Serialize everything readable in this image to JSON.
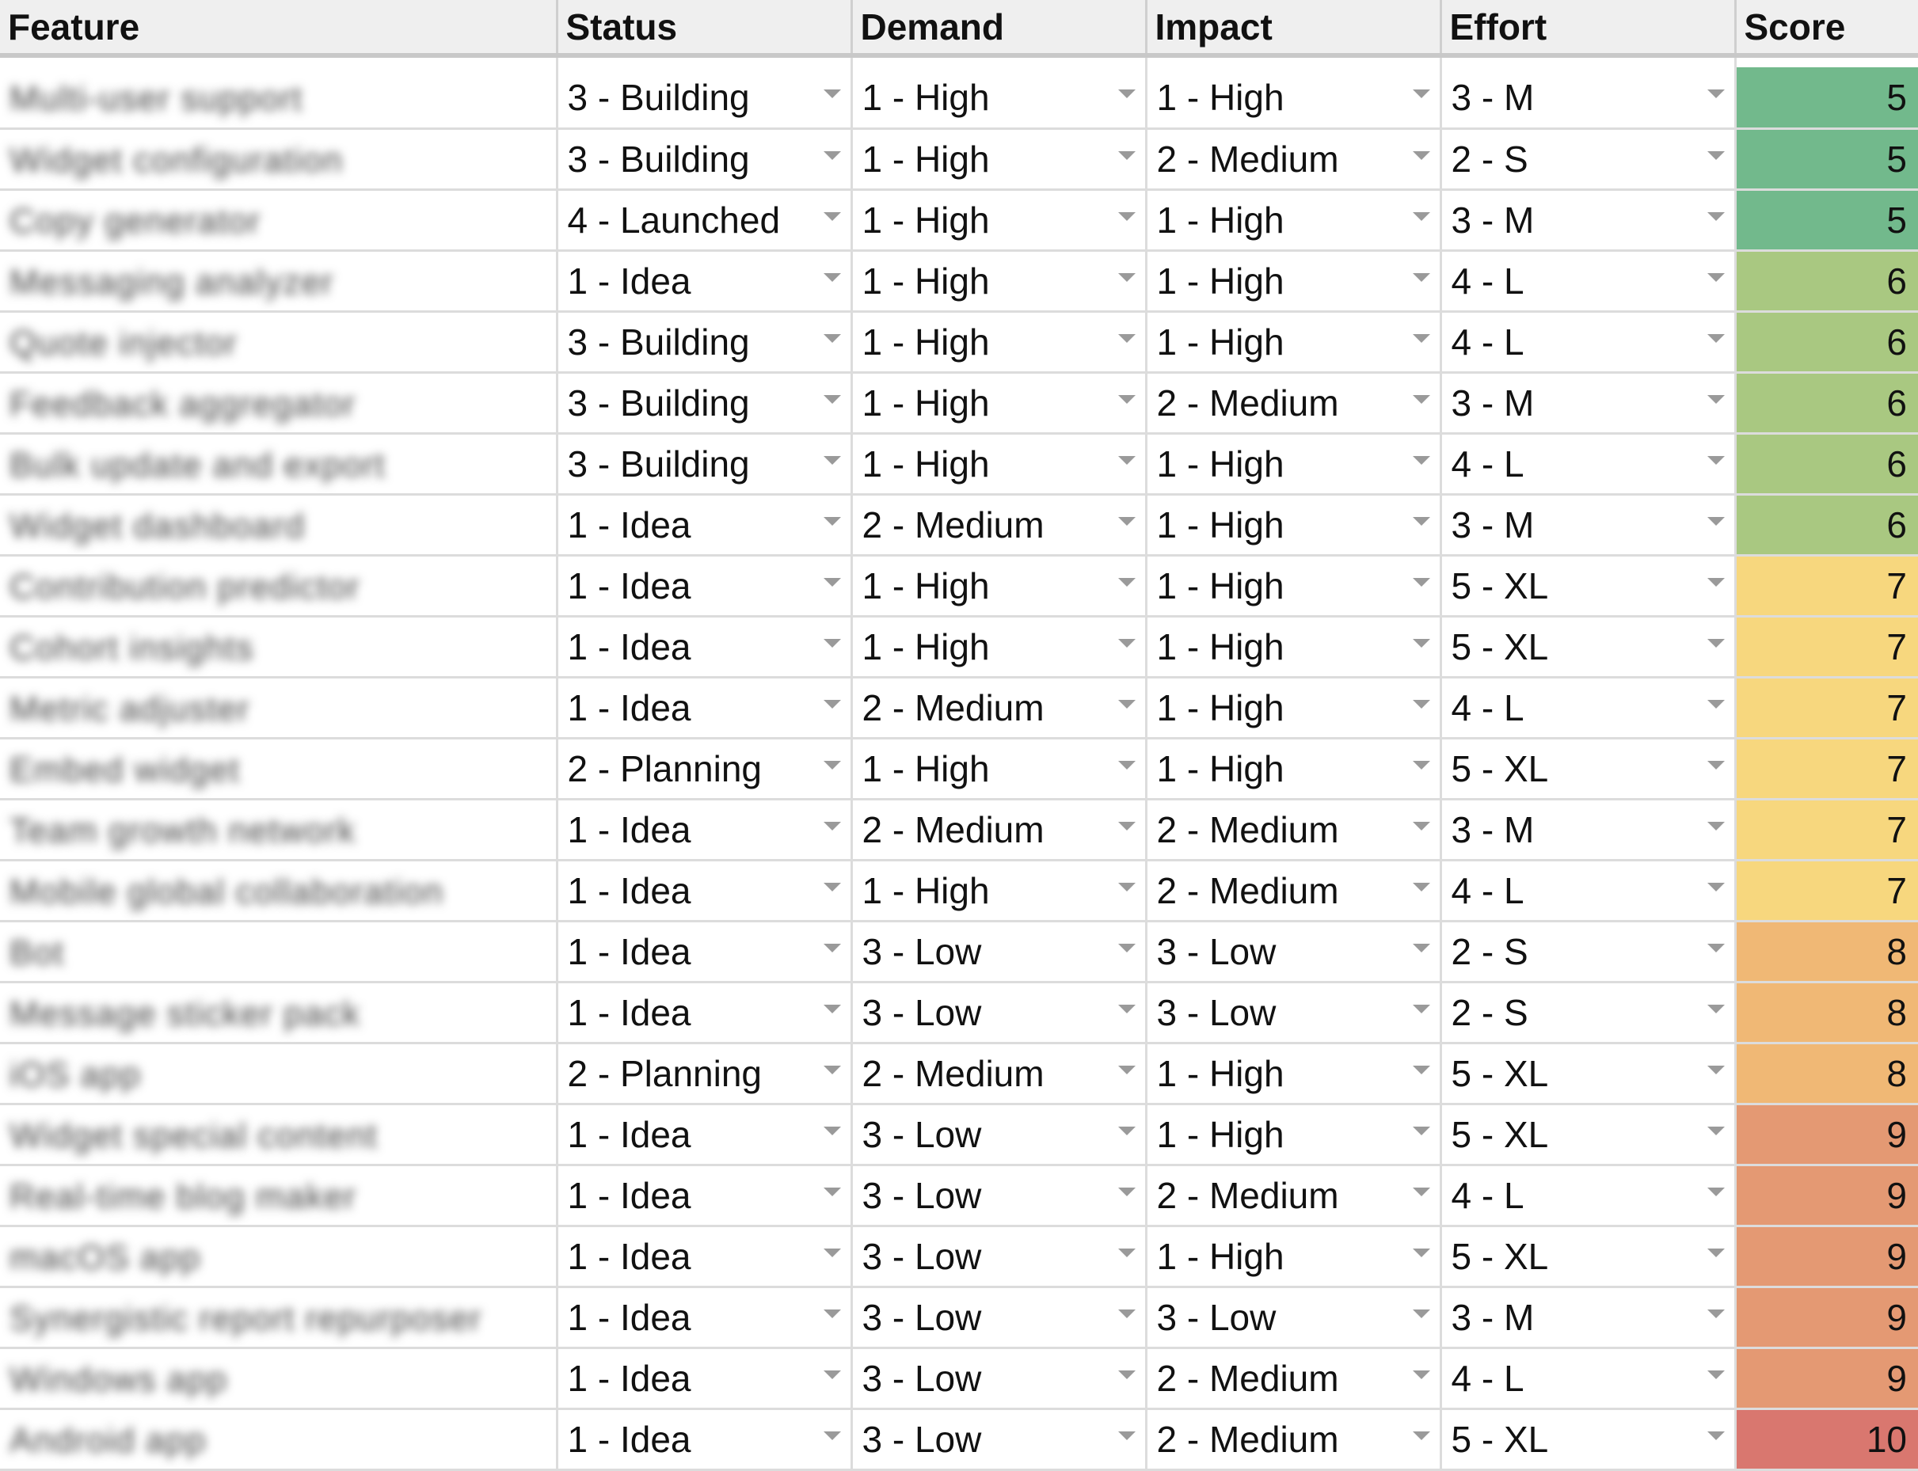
{
  "header": {
    "feature": "Feature",
    "status": "Status",
    "demand": "Demand",
    "impact": "Impact",
    "effort": "Effort",
    "score": "Score"
  },
  "icons": {
    "dropdown": "dropdown-arrow-icon"
  },
  "score_colors": {
    "5": "#72b98c",
    "6": "#a9c881",
    "7": "#f7d77e",
    "8": "#f0b875",
    "9": "#e49973",
    "10": "#d9776f"
  },
  "rows": [
    {
      "feature": "Multi-user support",
      "status": "3 - Building",
      "demand": "1 - High",
      "impact": "1 - High",
      "effort": "3 - M",
      "score": "5"
    },
    {
      "feature": "Widget configuration",
      "status": "3 - Building",
      "demand": "1 - High",
      "impact": "2 - Medium",
      "effort": "2 - S",
      "score": "5"
    },
    {
      "feature": "Copy generator",
      "status": "4 - Launched",
      "demand": "1 - High",
      "impact": "1 - High",
      "effort": "3 - M",
      "score": "5"
    },
    {
      "feature": "Messaging analyzer",
      "status": "1 - Idea",
      "demand": "1 - High",
      "impact": "1 - High",
      "effort": "4 - L",
      "score": "6"
    },
    {
      "feature": "Quote injector",
      "status": "3 - Building",
      "demand": "1 - High",
      "impact": "1 - High",
      "effort": "4 - L",
      "score": "6"
    },
    {
      "feature": "Feedback aggregator",
      "status": "3 - Building",
      "demand": "1 - High",
      "impact": "2 - Medium",
      "effort": "3 - M",
      "score": "6"
    },
    {
      "feature": "Bulk update and export",
      "status": "3 - Building",
      "demand": "1 - High",
      "impact": "1 - High",
      "effort": "4 - L",
      "score": "6"
    },
    {
      "feature": "Widget dashboard",
      "status": "1 - Idea",
      "demand": "2 - Medium",
      "impact": "1 - High",
      "effort": "3 - M",
      "score": "6"
    },
    {
      "feature": "Contribution predictor",
      "status": "1 - Idea",
      "demand": "1 - High",
      "impact": "1 - High",
      "effort": "5 - XL",
      "score": "7"
    },
    {
      "feature": "Cohort insights",
      "status": "1 - Idea",
      "demand": "1 - High",
      "impact": "1 - High",
      "effort": "5 - XL",
      "score": "7"
    },
    {
      "feature": "Metric adjuster",
      "status": "1 - Idea",
      "demand": "2 - Medium",
      "impact": "1 - High",
      "effort": "4 - L",
      "score": "7"
    },
    {
      "feature": "Embed widget",
      "status": "2 - Planning",
      "demand": "1 - High",
      "impact": "1 - High",
      "effort": "5 - XL",
      "score": "7"
    },
    {
      "feature": "Team growth network",
      "status": "1 - Idea",
      "demand": "2 - Medium",
      "impact": "2 - Medium",
      "effort": "3 - M",
      "score": "7"
    },
    {
      "feature": "Mobile global collaboration",
      "status": "1 - Idea",
      "demand": "1 - High",
      "impact": "2 - Medium",
      "effort": "4 - L",
      "score": "7"
    },
    {
      "feature": "Bot",
      "status": "1 - Idea",
      "demand": "3 - Low",
      "impact": "3 - Low",
      "effort": "2 - S",
      "score": "8"
    },
    {
      "feature": "Message sticker pack",
      "status": "1 - Idea",
      "demand": "3 - Low",
      "impact": "3 - Low",
      "effort": "2 - S",
      "score": "8"
    },
    {
      "feature": "iOS app",
      "status": "2 - Planning",
      "demand": "2 - Medium",
      "impact": "1 - High",
      "effort": "5 - XL",
      "score": "8"
    },
    {
      "feature": "Widget special content",
      "status": "1 - Idea",
      "demand": "3 - Low",
      "impact": "1 - High",
      "effort": "5 - XL",
      "score": "9"
    },
    {
      "feature": "Real-time blog maker",
      "status": "1 - Idea",
      "demand": "3 - Low",
      "impact": "2 - Medium",
      "effort": "4 - L",
      "score": "9"
    },
    {
      "feature": "macOS app",
      "status": "1 - Idea",
      "demand": "3 - Low",
      "impact": "1 - High",
      "effort": "5 - XL",
      "score": "9"
    },
    {
      "feature": "Synergistic report repurposer",
      "status": "1 - Idea",
      "demand": "3 - Low",
      "impact": "3 - Low",
      "effort": "3 - M",
      "score": "9"
    },
    {
      "feature": "Windows app",
      "status": "1 - Idea",
      "demand": "3 - Low",
      "impact": "2 - Medium",
      "effort": "4 - L",
      "score": "9"
    },
    {
      "feature": "Android app",
      "status": "1 - Idea",
      "demand": "3 - Low",
      "impact": "2 - Medium",
      "effort": "5 - XL",
      "score": "10"
    }
  ]
}
